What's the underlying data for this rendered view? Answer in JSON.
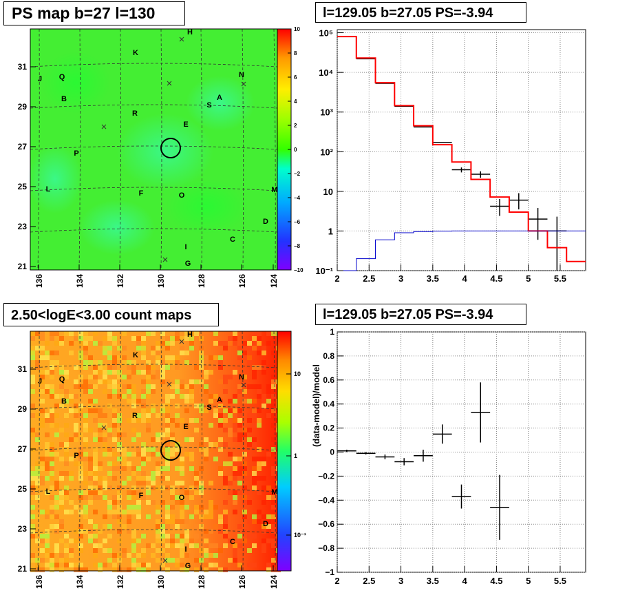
{
  "panels": {
    "ps_map": {
      "title": "PS map b=27 l=130",
      "colorbar": {
        "ticks": [
          "10",
          "8",
          "6",
          "4",
          "2",
          "0",
          "−2",
          "−4",
          "−6",
          "−8",
          "−10"
        ],
        "range": [
          -10,
          10
        ]
      },
      "xticks": [
        "136",
        "134",
        "132",
        "130",
        "128",
        "126",
        "124"
      ],
      "yticks": [
        "31",
        "29",
        "27",
        "25",
        "23",
        "21"
      ]
    },
    "spectrum": {
      "title": "l=129.05 b=27.05 PS=-3.94",
      "xticks": [
        "2",
        "2.5",
        "3",
        "3.5",
        "4",
        "4.5",
        "5",
        "5.5"
      ],
      "yticks": [
        "10⁵",
        "10⁴",
        "10³",
        "10²",
        "10",
        "1",
        "10⁻¹"
      ]
    },
    "count_map": {
      "title": "2.50<logE<3.00 count maps",
      "colorbar": {
        "ticks": [
          "10",
          "1",
          "10⁻¹"
        ]
      },
      "xticks": [
        "136",
        "134",
        "132",
        "130",
        "128",
        "126",
        "124"
      ],
      "yticks": [
        "31",
        "29",
        "27",
        "25",
        "23",
        "21"
      ]
    },
    "residual": {
      "title": "l=129.05 b=27.05 PS=-3.94",
      "ylabel": "(data-model)/model",
      "xticks": [
        "2",
        "2.5",
        "3",
        "3.5",
        "4",
        "4.5",
        "5",
        "5.5"
      ],
      "yticks": [
        "1",
        "0.8",
        "0.6",
        "0.4",
        "0.2",
        "0",
        "−0.2",
        "−0.4",
        "−0.6",
        "−0.8",
        "−1"
      ]
    }
  },
  "map_labels": [
    "H",
    "K",
    "J",
    "Q",
    "N",
    "B",
    "A",
    "S",
    "R",
    "E",
    "P",
    "L",
    "F",
    "O",
    "M",
    "D",
    "C",
    "I",
    "G"
  ],
  "chart_data": [
    {
      "type": "heatmap",
      "title": "PS map b=27 l=130",
      "x_axis_values": [
        136,
        134,
        132,
        130,
        128,
        126,
        124
      ],
      "y_axis_values": [
        31,
        29,
        27,
        25,
        23,
        21
      ],
      "z_range": [
        -10,
        10
      ],
      "colors": {
        "low": "#7f00ff",
        "mid": "#33ff00",
        "high": "#ff0000"
      },
      "source_marker": {
        "l": 129.05,
        "b": 27.05
      }
    },
    {
      "type": "line",
      "title": "l=129.05 b=27.05 PS=-3.94",
      "log_y": true,
      "xlim": [
        2.0,
        5.9
      ],
      "ylim": [
        0.1,
        120000
      ],
      "series": [
        {
          "color": "#000000",
          "kind": "data",
          "x": [
            2.15,
            2.45,
            2.75,
            3.05,
            3.35,
            3.65,
            3.95,
            4.25,
            4.55,
            4.85,
            5.15,
            5.45
          ],
          "y": [
            80000,
            22000,
            5300,
            1400,
            420,
            170,
            35,
            27,
            4.2,
            6,
            2,
            1
          ],
          "xerr": 0.15,
          "yerr_low": [
            0,
            0,
            0,
            0,
            0,
            0,
            5,
            5,
            1.8,
            2.5,
            1.4,
            0.93
          ],
          "yerr_high": [
            0,
            0,
            0,
            0,
            0,
            0,
            5,
            5,
            2.2,
            3,
            1.8,
            1.3
          ]
        },
        {
          "color": "#ff0000",
          "kind": "model_hist",
          "edges": [
            2.0,
            2.3,
            2.6,
            2.9,
            3.2,
            3.5,
            3.8,
            4.1,
            4.4,
            4.7,
            5.0,
            5.3,
            5.6,
            5.9
          ],
          "values": [
            80000,
            23000,
            5500,
            1450,
            450,
            150,
            55,
            20,
            7.2,
            3,
            1,
            0.38,
            0.17
          ]
        },
        {
          "color": "#0000cc",
          "kind": "ps_hist",
          "edges": [
            2.0,
            2.3,
            2.6,
            2.9,
            3.2,
            3.5,
            3.8,
            4.1,
            4.4,
            4.7,
            5.0,
            5.3,
            5.6,
            5.9
          ],
          "values": [
            0.1,
            0.2,
            0.6,
            0.9,
            0.97,
            0.99,
            1,
            1,
            1,
            1,
            1,
            1,
            1
          ]
        }
      ]
    },
    {
      "type": "heatmap",
      "title": "2.50<logE<3.00 count maps",
      "x_axis_values": [
        136,
        134,
        132,
        130,
        128,
        126,
        124
      ],
      "y_axis_values": [
        31,
        29,
        27,
        25,
        23,
        21
      ],
      "log_z": true,
      "colors": {
        "low": "#7f00ff",
        "high": "#ff0000"
      }
    },
    {
      "type": "scatter",
      "title": "l=129.05 b=27.05 PS=-3.94",
      "ylabel": "(data-model)/model",
      "xlim": [
        2.0,
        5.9
      ],
      "ylim": [
        -1,
        1
      ],
      "x": [
        2.15,
        2.45,
        2.75,
        3.05,
        3.35,
        3.65,
        3.95,
        4.25,
        4.55
      ],
      "y": [
        0.01,
        -0.01,
        -0.04,
        -0.08,
        -0.03,
        0.15,
        -0.37,
        0.33,
        -0.46
      ],
      "xerr": 0.15,
      "yerr": [
        0.01,
        0.01,
        0.02,
        0.03,
        0.05,
        0.08,
        0.1,
        0.25,
        0.27
      ]
    }
  ]
}
